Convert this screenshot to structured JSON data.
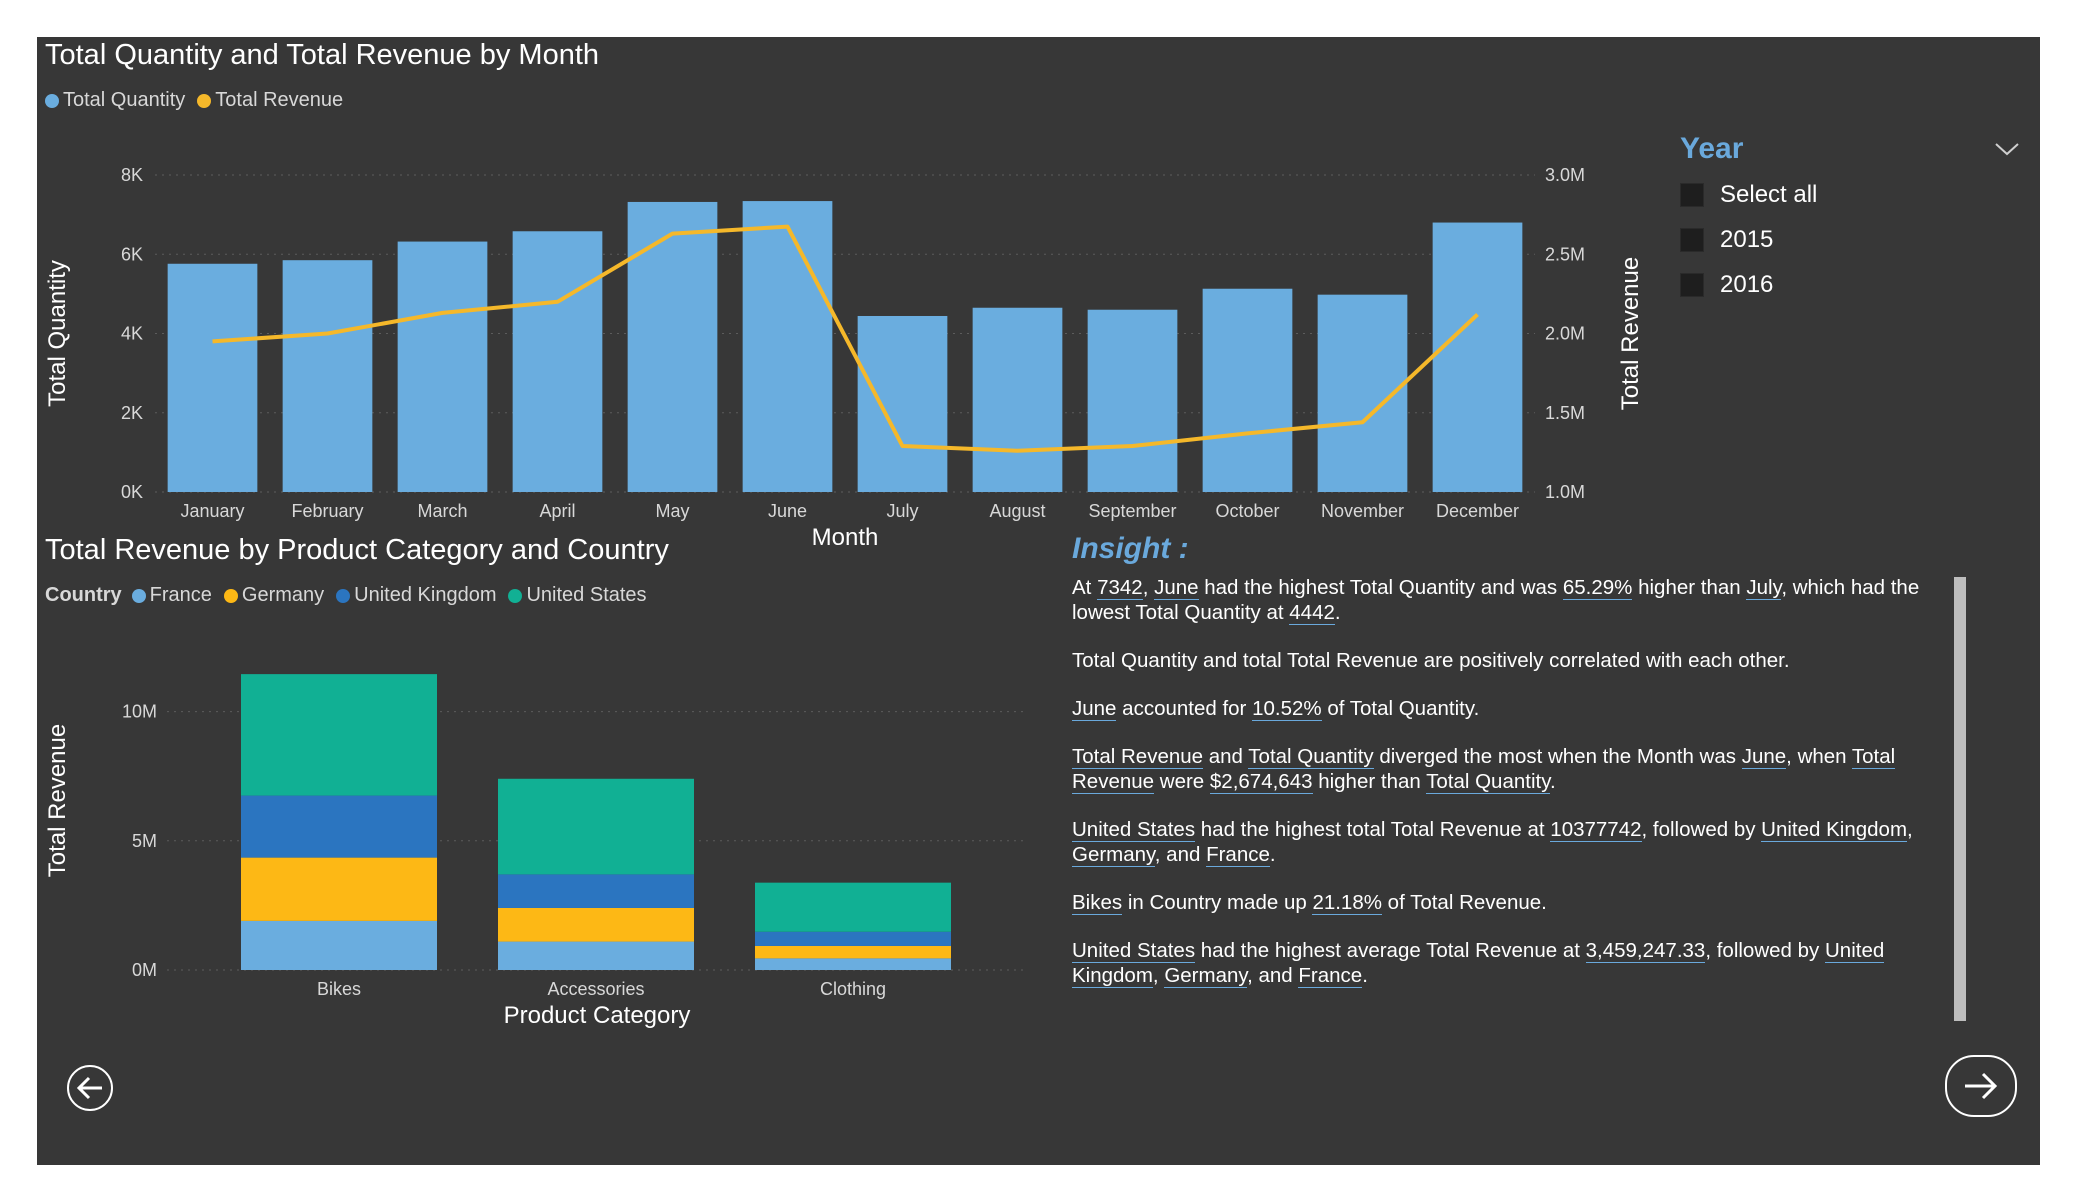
{
  "chart_data": [
    {
      "type": "bar",
      "title": "Total Quantity and Total Revenue by Month",
      "xlabel": "Month",
      "ylabel": "Total Quantity",
      "y2label": "Total Revenue",
      "categories": [
        "January",
        "February",
        "March",
        "April",
        "May",
        "June",
        "July",
        "August",
        "September",
        "October",
        "November",
        "December"
      ],
      "ylim": [
        0,
        8000
      ],
      "y_ticks": [
        "0K",
        "2K",
        "4K",
        "6K",
        "8K"
      ],
      "y2lim": [
        1000000,
        3000000
      ],
      "y2_ticks": [
        "1.0M",
        "1.5M",
        "2.0M",
        "2.5M",
        "3.0M"
      ],
      "series": [
        {
          "name": "Total Quantity",
          "type": "bar",
          "axis": "left",
          "color": "#6aaddf",
          "values": [
            5760,
            5850,
            6320,
            6580,
            7320,
            7342,
            4442,
            4650,
            4600,
            5130,
            4980,
            6800
          ]
        },
        {
          "name": "Total Revenue",
          "type": "line",
          "axis": "right",
          "color": "#f5b82a",
          "values": [
            1950000,
            2000000,
            2130000,
            2200000,
            2630000,
            2674643,
            1290000,
            1260000,
            1290000,
            1370000,
            1440000,
            2120000
          ]
        }
      ],
      "legend_position": "top-left",
      "grid": true
    },
    {
      "type": "bar",
      "stacked": true,
      "title": "Total Revenue by Product Category and Country",
      "legend_title": "Country",
      "xlabel": "Product Category",
      "ylabel": "Total Revenue",
      "categories": [
        "Bikes",
        "Accessories",
        "Clothing"
      ],
      "ylim": [
        0,
        12500000
      ],
      "y_ticks": [
        "0M",
        "5M",
        "10M"
      ],
      "series": [
        {
          "name": "France",
          "color": "#6aaddf",
          "values": [
            1900000,
            1100000,
            450000
          ]
        },
        {
          "name": "Germany",
          "color": "#fdb815",
          "values": [
            2450000,
            1300000,
            480000
          ]
        },
        {
          "name": "United Kingdom",
          "color": "#2b75c0",
          "values": [
            2400000,
            1300000,
            550000
          ]
        },
        {
          "name": "United States",
          "color": "#11b094",
          "values": [
            4700000,
            3700000,
            1900000
          ]
        }
      ],
      "legend_position": "top-left",
      "grid": true
    }
  ],
  "slicer": {
    "title": "Year",
    "items": [
      "Select all",
      "2015",
      "2016"
    ]
  },
  "insight": {
    "title": "Insight :",
    "p1": {
      "a": "At ",
      "v1": "7342",
      ",": ", ",
      "v2": "June",
      "b": " had the highest Total Quantity and was ",
      "v3": "65.29%",
      "c": " higher than ",
      "v4": "July",
      "d": ", which had the lowest Total Quantity at ",
      "v5": "4442",
      "e": "."
    },
    "p2": "Total Quantity and total Total Revenue are positively correlated with each other.",
    "p3": {
      "v1": "June",
      "a": " accounted for ",
      "v2": "10.52%",
      "b": " of Total Quantity."
    },
    "p4": {
      "v1": "Total Revenue",
      "a": " and ",
      "v2": "Total Quantity",
      "b": " diverged the most when the Month was ",
      "v3": "June",
      "c": ", when ",
      "v4": "Total Revenue",
      "d": " were ",
      "v5": "$2,674,643",
      "e": " higher than ",
      "v6": "Total Quantity",
      "f": "."
    },
    "p5": {
      "v1": "United States",
      "a": " had the highest total Total Revenue at ",
      "v2": "10377742",
      "b": ", followed by ",
      "v3": "United Kingdom",
      "c": ", ",
      "v4": "Germany",
      "d": ", and ",
      "v5": "France",
      "e": "."
    },
    "p6": {
      "v1": "Bikes",
      "a": " in Country  made up ",
      "v2": "21.18%",
      "b": " of Total Revenue."
    },
    "p7": {
      "v1": "United States",
      "a": " had the highest average Total Revenue at ",
      "v2": "3,459,247.33",
      "b": ", followed by ",
      "v3": "United Kingdom",
      "c": ", ",
      "v4": "Germany",
      "d": ", and ",
      "v5": "France",
      "e": "."
    }
  },
  "nav": {
    "back_icon": "arrow-left-circle-icon",
    "next_icon": "arrow-right-icon"
  },
  "colors": {
    "background": "#373737",
    "accent": "#6aa9dc"
  }
}
